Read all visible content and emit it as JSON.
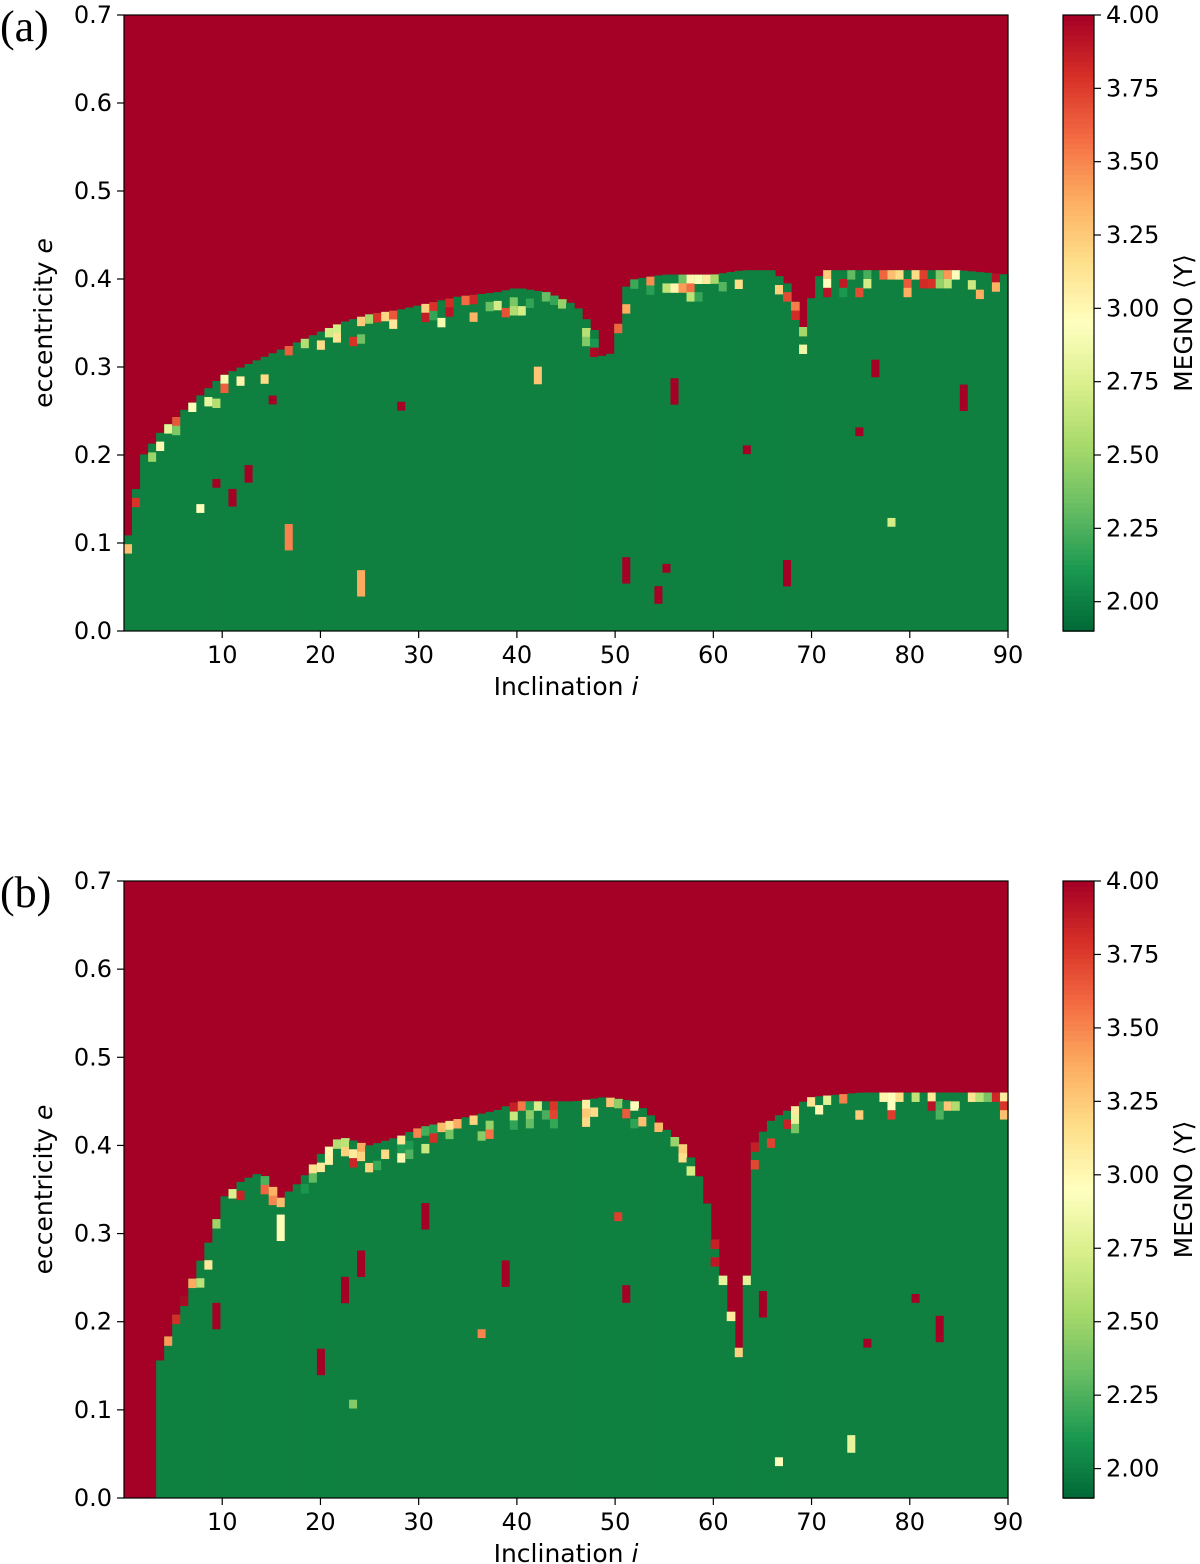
{
  "colors": {
    "chaotic": "#a50026",
    "stable": "#0f8040",
    "colormap": [
      "#006837",
      "#1a9850",
      "#66bd63",
      "#a6d96a",
      "#d9ef8b",
      "#ffffbf",
      "#fee08b",
      "#fdae61",
      "#f46d43",
      "#d73027",
      "#a50026"
    ]
  },
  "chart_data": [
    {
      "type": "heatmap",
      "panel_label": "(a)",
      "xlabel": "Inclination",
      "xlabel_symbol": "i",
      "ylabel": "eccentricity",
      "ylabel_symbol": "e",
      "xlim": [
        0,
        90
      ],
      "ylim": [
        0,
        0.7
      ],
      "xticks": [
        "10",
        "20",
        "30",
        "40",
        "50",
        "60",
        "70",
        "80",
        "90"
      ],
      "yticks": [
        "0.0",
        "0.1",
        "0.2",
        "0.3",
        "0.4",
        "0.5",
        "0.6",
        "0.7"
      ],
      "colorbar": {
        "label": "MEGNO ⟨Y⟩",
        "range": [
          1.9,
          4.0
        ],
        "ticks": [
          "4.00",
          "3.75",
          "3.50",
          "3.25",
          "3.00",
          "2.75",
          "2.50",
          "2.25",
          "2.00"
        ]
      },
      "chaotic_value": 4.0,
      "stable_value": 2.0,
      "stability_boundary": {
        "inclination": [
          0,
          1,
          2,
          4,
          6,
          8,
          10,
          12,
          14,
          16,
          18,
          20,
          22,
          25,
          28,
          30,
          34,
          38,
          40,
          43,
          46,
          48,
          49,
          50,
          51,
          52,
          55,
          58,
          60,
          63,
          66,
          68,
          69,
          70,
          71,
          75,
          80,
          85,
          90
        ],
        "eccentricity": [
          0.08,
          0.15,
          0.2,
          0.23,
          0.25,
          0.27,
          0.29,
          0.3,
          0.31,
          0.32,
          0.33,
          0.34,
          0.35,
          0.36,
          0.365,
          0.37,
          0.38,
          0.385,
          0.39,
          0.385,
          0.37,
          0.34,
          0.3,
          0.33,
          0.39,
          0.4,
          0.405,
          0.405,
          0.405,
          0.41,
          0.41,
          0.39,
          0.34,
          0.38,
          0.41,
          0.41,
          0.41,
          0.41,
          0.405
        ]
      }
    },
    {
      "type": "heatmap",
      "panel_label": "(b)",
      "xlabel": "Inclination",
      "xlabel_symbol": "i",
      "ylabel": "eccentricity",
      "ylabel_symbol": "e",
      "xlim": [
        0,
        90
      ],
      "ylim": [
        0,
        0.7
      ],
      "xticks": [
        "10",
        "20",
        "30",
        "40",
        "50",
        "60",
        "70",
        "80",
        "90"
      ],
      "yticks": [
        "0.0",
        "0.1",
        "0.2",
        "0.3",
        "0.4",
        "0.5",
        "0.6",
        "0.7"
      ],
      "colorbar": {
        "label": "MEGNO ⟨Y⟩",
        "range": [
          1.9,
          4.0
        ],
        "ticks": [
          "4.00",
          "3.75",
          "3.50",
          "3.25",
          "3.00",
          "2.75",
          "2.50",
          "2.25",
          "2.00"
        ]
      },
      "chaotic_value": 4.0,
      "stable_value": 2.0,
      "stability_boundary": {
        "inclination": [
          0,
          3,
          3.5,
          5,
          7,
          9,
          10,
          12,
          14,
          16,
          18,
          20,
          22,
          25,
          28,
          30,
          34,
          38,
          40,
          43,
          46,
          49,
          52,
          55,
          57,
          58,
          59,
          60,
          61,
          62,
          63,
          64,
          66,
          70,
          75,
          80,
          85,
          90
        ],
        "eccentricity": [
          0.0,
          0.0,
          0.15,
          0.2,
          0.25,
          0.3,
          0.34,
          0.36,
          0.37,
          0.34,
          0.36,
          0.39,
          0.41,
          0.4,
          0.41,
          0.42,
          0.43,
          0.44,
          0.45,
          0.45,
          0.45,
          0.455,
          0.45,
          0.42,
          0.4,
          0.38,
          0.35,
          0.3,
          0.25,
          0.2,
          0.15,
          0.4,
          0.43,
          0.455,
          0.46,
          0.46,
          0.46,
          0.46
        ]
      }
    }
  ]
}
